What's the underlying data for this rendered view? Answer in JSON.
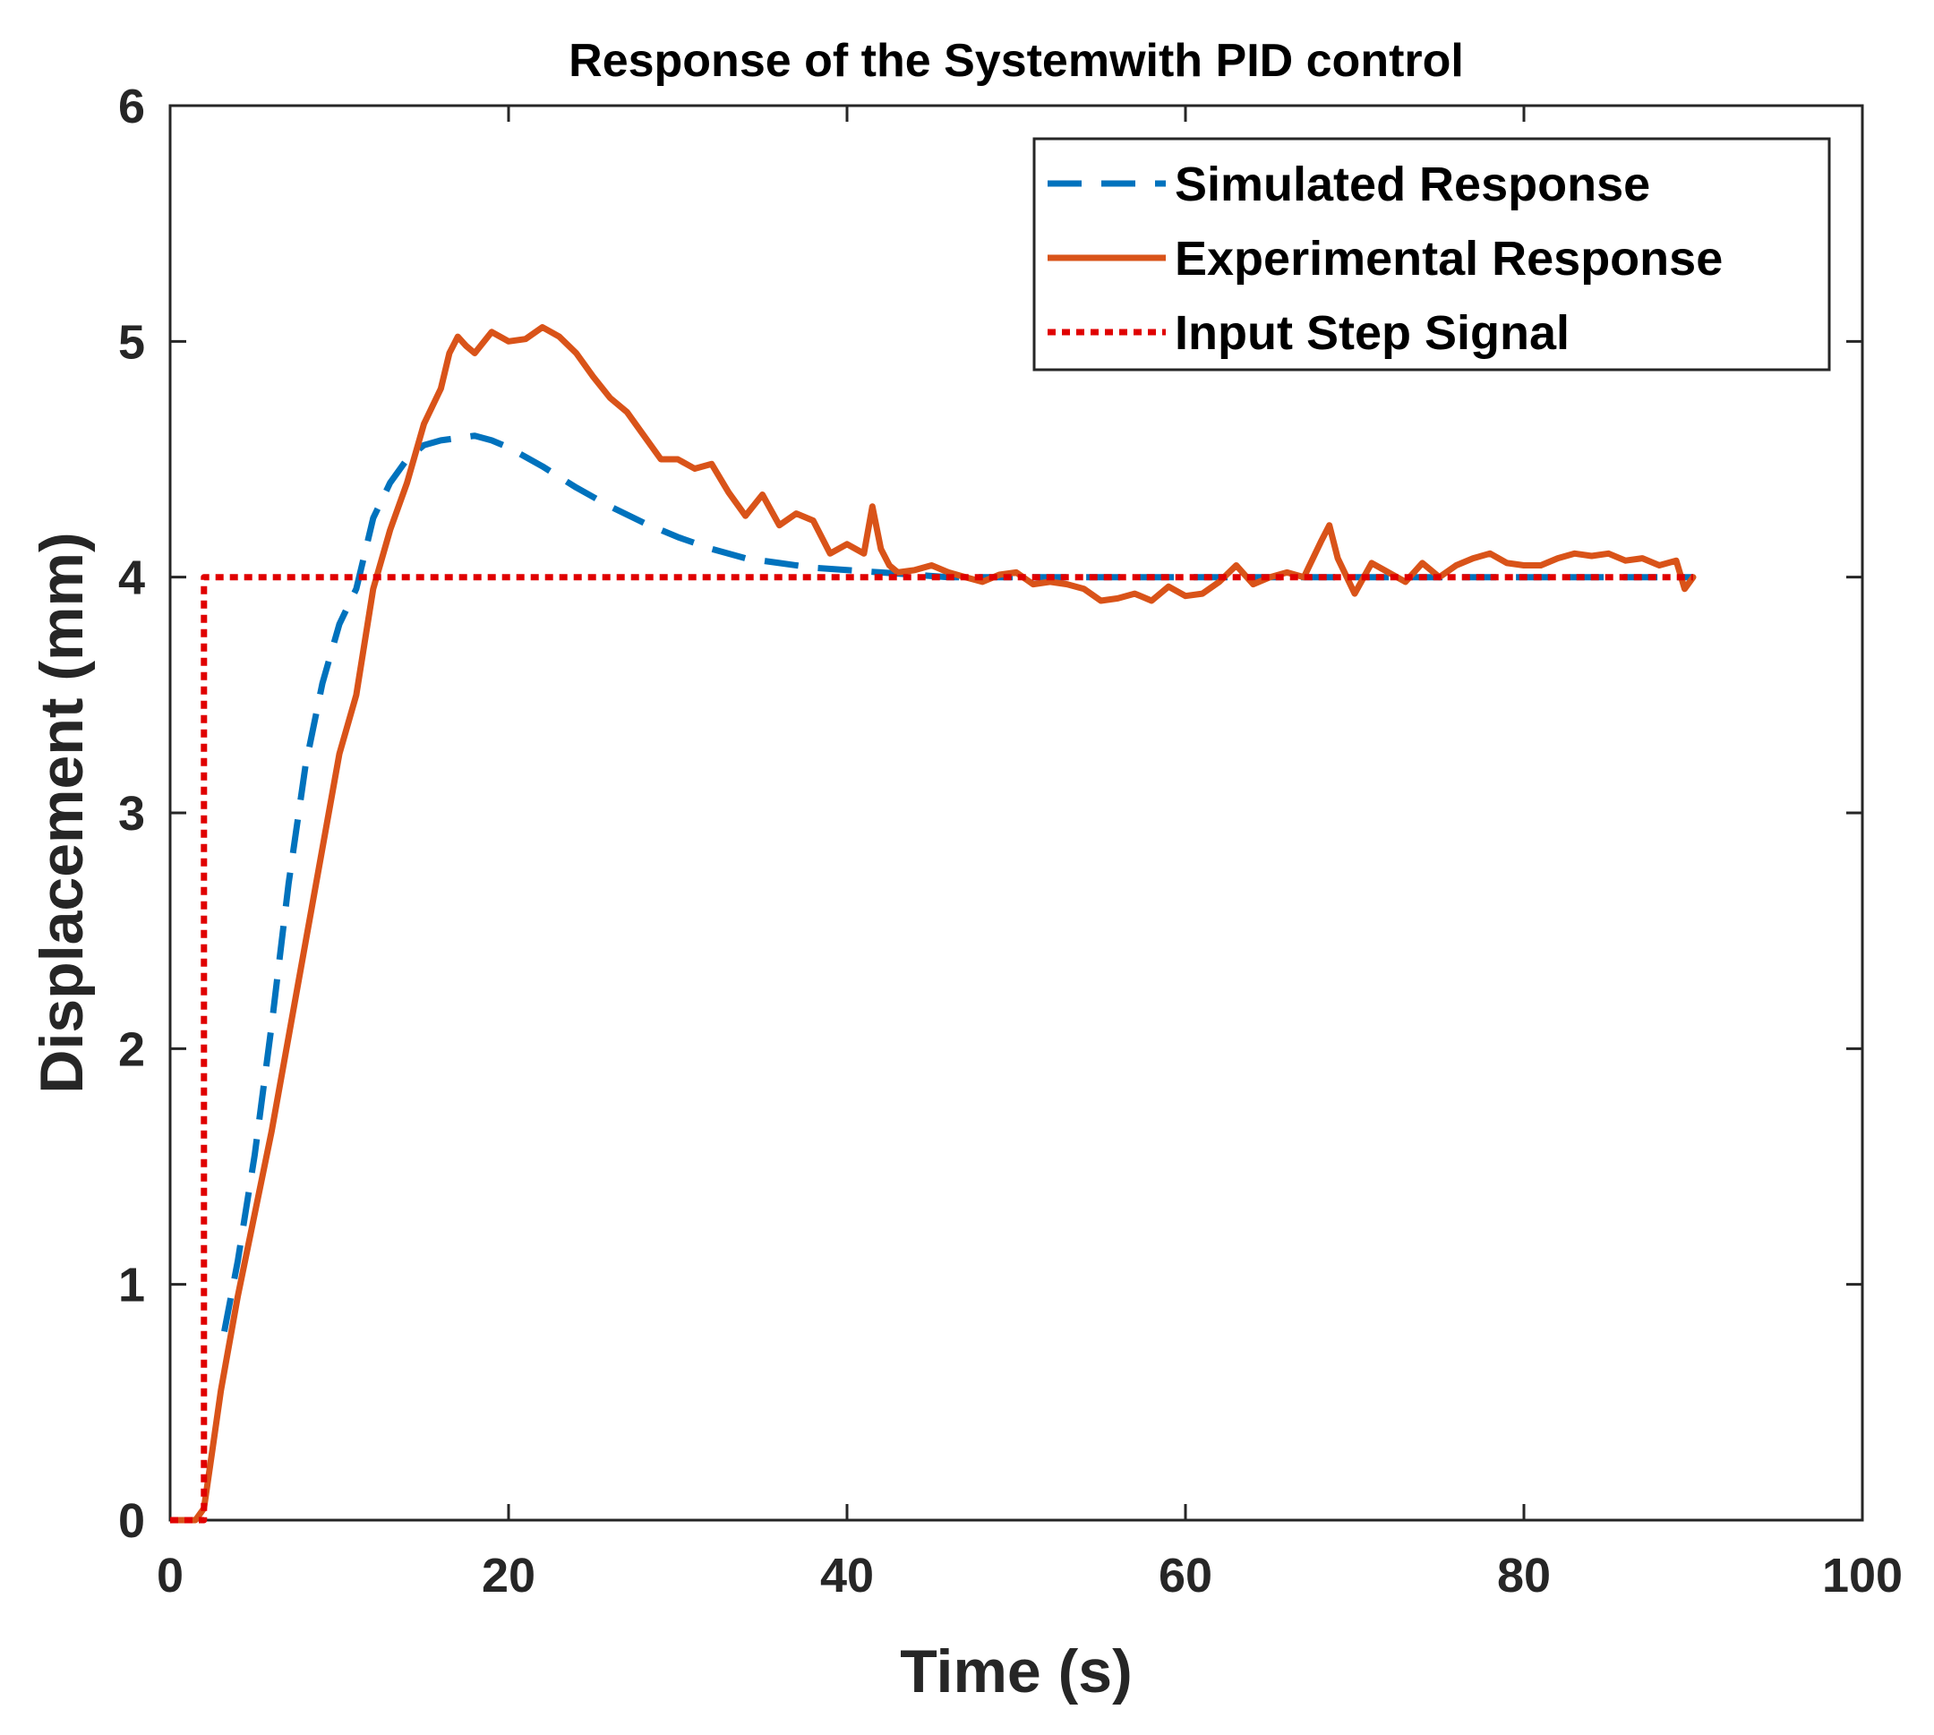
{
  "chart_data": {
    "type": "line",
    "title": "Response of the Systemwith PID control",
    "xlabel": "Time (s)",
    "ylabel": "Displacement (mm)",
    "xlim": [
      0,
      100
    ],
    "ylim": [
      0,
      6
    ],
    "xticks": [
      0,
      20,
      40,
      60,
      80,
      100
    ],
    "yticks": [
      0,
      1,
      2,
      3,
      4,
      5,
      6
    ],
    "xtick_labels": [
      "0",
      "20",
      "40",
      "60",
      "80",
      "100"
    ],
    "ytick_labels": [
      "0",
      "1",
      "2",
      "3",
      "4",
      "5",
      "6"
    ],
    "grid": false,
    "legend_position": "top-right",
    "series": [
      {
        "name": "Simulated Response",
        "color": "#0072BD",
        "style": "dashed",
        "x": [
          3.2,
          4,
          5,
          6,
          7,
          8,
          9,
          10,
          11,
          11.5,
          12,
          13,
          14,
          15,
          16,
          17,
          18,
          19,
          20,
          22,
          24,
          26,
          28,
          30,
          32,
          34,
          36,
          38,
          40,
          42,
          44,
          46,
          48,
          50,
          55,
          60,
          65,
          70,
          75,
          80,
          85,
          90
        ],
        "y": [
          0.8,
          1.1,
          1.55,
          2.1,
          2.7,
          3.2,
          3.55,
          3.8,
          3.95,
          4.1,
          4.25,
          4.4,
          4.5,
          4.56,
          4.58,
          4.59,
          4.6,
          4.58,
          4.55,
          4.47,
          4.38,
          4.3,
          4.23,
          4.17,
          4.12,
          4.08,
          4.06,
          4.04,
          4.03,
          4.02,
          4.01,
          4.0,
          4.0,
          4.0,
          4.0,
          4.0,
          4.0,
          4.0,
          4.0,
          4.0,
          4.0,
          4.0
        ]
      },
      {
        "name": "Experimental Response",
        "color": "#D95319",
        "style": "solid",
        "x": [
          0.5,
          1.5,
          2,
          2.5,
          3,
          4,
          5,
          6,
          7,
          8,
          9,
          10,
          11,
          12,
          13,
          14,
          15,
          16,
          16.5,
          17,
          17.5,
          18,
          19,
          20,
          21,
          22,
          23,
          24,
          25,
          26,
          27,
          28,
          29,
          30,
          31,
          32,
          33,
          34,
          35,
          36,
          37,
          38,
          39,
          40,
          41,
          41.5,
          42,
          42.5,
          43,
          44,
          45,
          46,
          47,
          48,
          49,
          50,
          51,
          52,
          53,
          54,
          55,
          56,
          57,
          58,
          59,
          60,
          61,
          62,
          63,
          64,
          65,
          66,
          67,
          68,
          68.5,
          69,
          70,
          71,
          72,
          73,
          74,
          75,
          76,
          77,
          78,
          79,
          80,
          81,
          82,
          83,
          84,
          85,
          86,
          87,
          88,
          89,
          89.5,
          90
        ],
        "y": [
          0.0,
          0.0,
          0.05,
          0.3,
          0.55,
          0.95,
          1.3,
          1.65,
          2.05,
          2.45,
          2.85,
          3.25,
          3.5,
          3.95,
          4.2,
          4.4,
          4.65,
          4.8,
          4.95,
          5.02,
          4.98,
          4.95,
          5.04,
          5.0,
          5.01,
          5.06,
          5.02,
          4.95,
          4.85,
          4.76,
          4.7,
          4.6,
          4.5,
          4.5,
          4.46,
          4.48,
          4.36,
          4.26,
          4.35,
          4.22,
          4.27,
          4.24,
          4.1,
          4.14,
          4.1,
          4.3,
          4.12,
          4.05,
          4.02,
          4.03,
          4.05,
          4.02,
          4.0,
          3.98,
          4.01,
          4.02,
          3.97,
          3.98,
          3.97,
          3.95,
          3.9,
          3.91,
          3.93,
          3.9,
          3.96,
          3.92,
          3.93,
          3.98,
          4.05,
          3.97,
          4.0,
          4.02,
          4.0,
          4.15,
          4.22,
          4.08,
          3.93,
          4.06,
          4.02,
          3.98,
          4.06,
          4.0,
          4.05,
          4.08,
          4.1,
          4.06,
          4.05,
          4.05,
          4.08,
          4.1,
          4.09,
          4.1,
          4.07,
          4.08,
          4.05,
          4.07,
          3.95,
          4.0
        ]
      },
      {
        "name": "Input Step Signal",
        "color": "#E00000",
        "style": "dotted",
        "x": [
          0,
          2,
          2,
          90
        ],
        "y": [
          0,
          0,
          4,
          4
        ]
      }
    ]
  }
}
